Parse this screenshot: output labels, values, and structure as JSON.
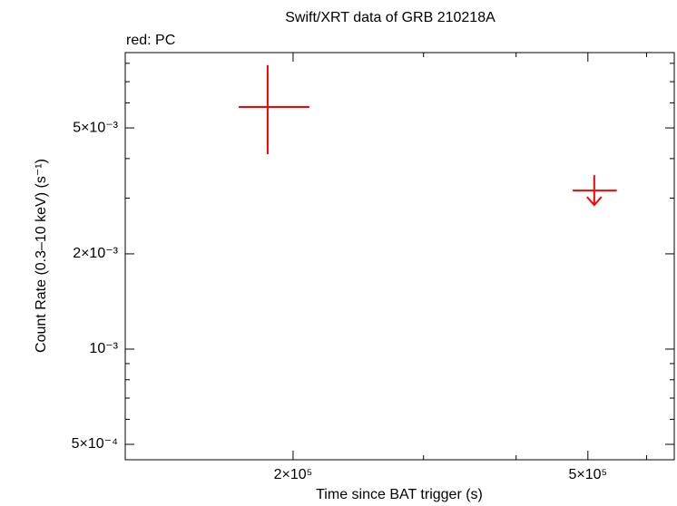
{
  "chart_data": {
    "type": "scatter",
    "title": "Swift/XRT data of GRB 210218A",
    "annotation": "red: PC",
    "x_label": "Time since BAT trigger (s)",
    "y_label": "Count Rate (0.3–10 keV) (s⁻¹)",
    "xlog": true,
    "ylog": true,
    "xlim": [
      118700,
      654000
    ],
    "ylim": [
      0.000447,
      0.00865
    ],
    "xticks": [
      {
        "value": 200000,
        "label": "2×10⁵"
      },
      {
        "value": 500000,
        "label": "5×10⁵"
      }
    ],
    "yticks": [
      {
        "value": 0.0005,
        "label": "5×10⁻⁴"
      },
      {
        "value": 0.001,
        "label": "10⁻³"
      },
      {
        "value": 0.002,
        "label": "2×10⁻³"
      },
      {
        "value": 0.005,
        "label": "5×10⁻³"
      }
    ],
    "xminorticks": [
      300000,
      400000,
      600000
    ],
    "yminorticks": [
      0.0006,
      0.0007,
      0.0008,
      0.0009,
      0.003,
      0.004,
      0.006,
      0.007,
      0.008
    ],
    "series": [
      {
        "color": "#ff0000",
        "x": [
          184800,
          510000
        ],
        "x_low": [
          168900,
          477000
        ],
        "x_high": [
          210400,
          547000
        ],
        "values": [
          0.00582,
          0.00317
        ],
        "y_low": [
          0.00413,
          null
        ],
        "y_high": [
          0.00789,
          null
        ],
        "upper_limit": [
          false,
          true
        ]
      }
    ]
  }
}
